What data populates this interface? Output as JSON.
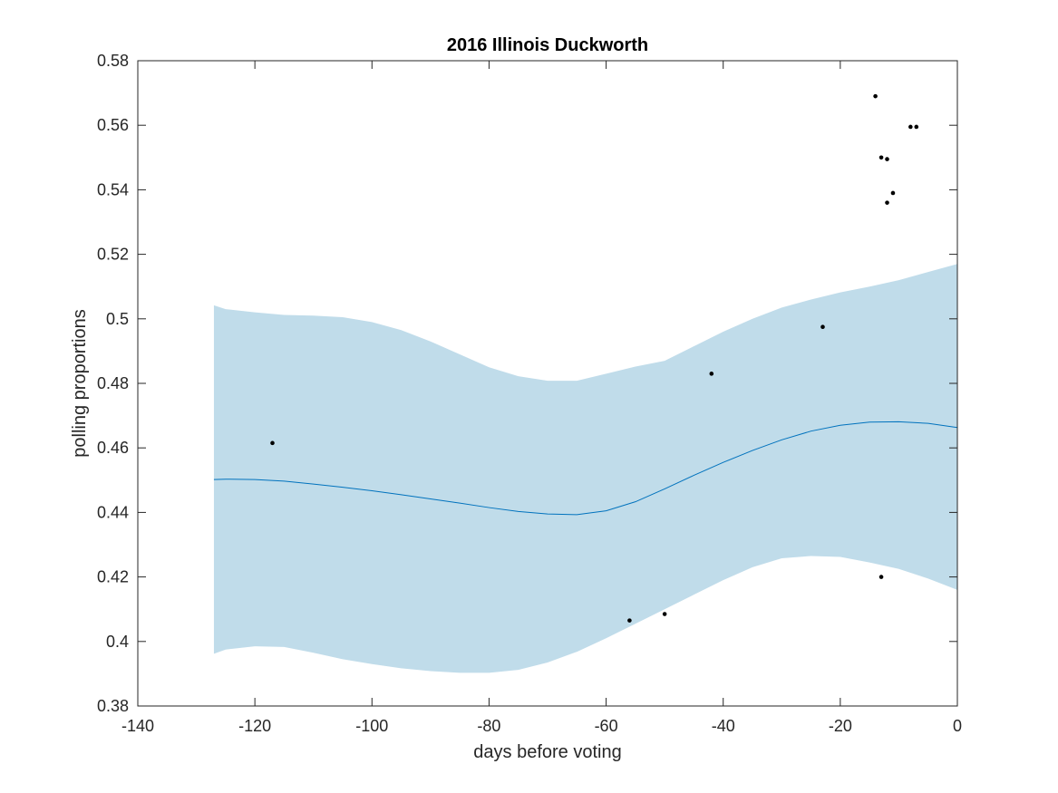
{
  "chart_data": {
    "type": "line",
    "title": "2016 Illinois Duckworth",
    "xlabel": "days before voting",
    "ylabel": "polling proportions",
    "xlim": [
      -140,
      0
    ],
    "ylim": [
      0.38,
      0.58
    ],
    "xticks": [
      -140,
      -120,
      -100,
      -80,
      -60,
      -40,
      -20,
      0
    ],
    "xtick_labels": [
      "-140",
      "-120",
      "-100",
      "-80",
      "-60",
      "-40",
      "-20",
      "0"
    ],
    "yticks": [
      0.38,
      0.4,
      0.42,
      0.44,
      0.46,
      0.48,
      0.5,
      0.52,
      0.54,
      0.56,
      0.58
    ],
    "ytick_labels": [
      "0.38",
      "0.4",
      "0.42",
      "0.44",
      "0.46",
      "0.48",
      "0.5",
      "0.52",
      "0.54",
      "0.56",
      "0.58"
    ],
    "grid": false,
    "colors": {
      "band": "#c0dcea",
      "line": "#0072bd",
      "points": "#000000",
      "axes": "#262626"
    },
    "trend": {
      "x": [
        -127,
        -125,
        -120,
        -115,
        -110,
        -105,
        -100,
        -95,
        -90,
        -85,
        -80,
        -75,
        -70,
        -65,
        -60,
        -55,
        -50,
        -45,
        -40,
        -35,
        -30,
        -25,
        -20,
        -15,
        -10,
        -5,
        0
      ],
      "mean": [
        0.4502,
        0.4503,
        0.4502,
        0.4497,
        0.4488,
        0.4478,
        0.4467,
        0.4455,
        0.4442,
        0.4429,
        0.4415,
        0.4403,
        0.4395,
        0.4393,
        0.4405,
        0.4433,
        0.4473,
        0.4515,
        0.4555,
        0.4592,
        0.4625,
        0.4652,
        0.467,
        0.468,
        0.4681,
        0.4676,
        0.4663
      ],
      "upper": [
        0.5042,
        0.503,
        0.502,
        0.5012,
        0.501,
        0.5005,
        0.499,
        0.4965,
        0.493,
        0.489,
        0.485,
        0.4822,
        0.4808,
        0.4808,
        0.483,
        0.4852,
        0.487,
        0.4915,
        0.496,
        0.5,
        0.5035,
        0.506,
        0.5082,
        0.51,
        0.512,
        0.5145,
        0.517
      ],
      "lower": [
        0.3962,
        0.3975,
        0.3985,
        0.3983,
        0.3965,
        0.3945,
        0.393,
        0.3917,
        0.3908,
        0.3903,
        0.3903,
        0.3912,
        0.3935,
        0.3968,
        0.401,
        0.4055,
        0.41,
        0.4145,
        0.419,
        0.423,
        0.4258,
        0.4265,
        0.4262,
        0.4245,
        0.4225,
        0.4195,
        0.416
      ]
    },
    "polls": {
      "x": [
        -117,
        -56,
        -50,
        -42,
        -23,
        -14,
        -13,
        -12,
        -12,
        -11,
        -8,
        -7,
        -13
      ],
      "y": [
        0.4615,
        0.4065,
        0.4085,
        0.483,
        0.4975,
        0.569,
        0.55,
        0.5495,
        0.536,
        0.539,
        0.5595,
        0.5595,
        0.42
      ]
    }
  }
}
